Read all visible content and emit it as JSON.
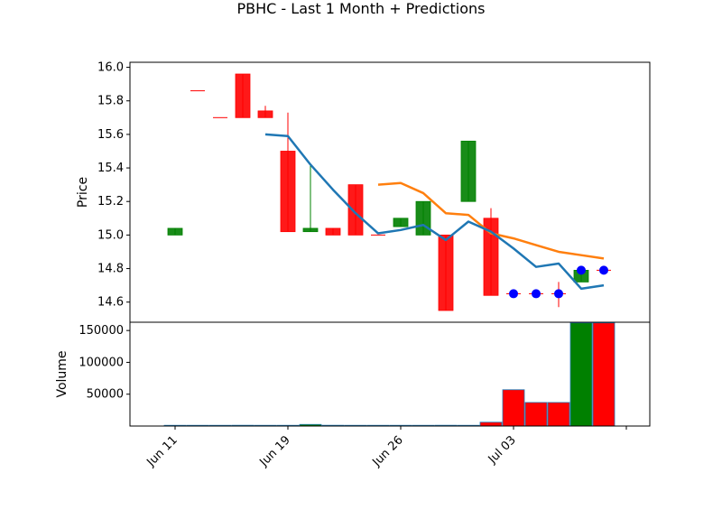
{
  "chart_data": {
    "type": "candlestick",
    "title": "PBHC - Last 1 Month + Predictions",
    "x_tick_labels": [
      "Jun 11",
      "Jun 19",
      "Jun 26",
      "Jul 03"
    ],
    "price_panel": {
      "ylabel": "Price",
      "ylim": [
        14.48,
        16.03
      ],
      "yticks": [
        "14.6",
        "14.8",
        "15.0",
        "15.2",
        "15.4",
        "15.6",
        "15.8",
        "16.0"
      ],
      "candles": [
        {
          "open": 15.0,
          "close": 15.04,
          "high": 15.04,
          "low": 15.0,
          "color": "green"
        },
        {
          "open": 15.86,
          "close": 15.86,
          "high": 15.86,
          "low": 15.86,
          "color": "red"
        },
        {
          "open": 15.7,
          "close": 15.7,
          "high": 15.7,
          "low": 15.7,
          "color": "red"
        },
        {
          "open": 15.96,
          "close": 15.7,
          "high": 15.96,
          "low": 15.7,
          "color": "red"
        },
        {
          "open": 15.74,
          "close": 15.7,
          "high": 15.77,
          "low": 15.7,
          "color": "red"
        },
        {
          "open": 15.5,
          "close": 15.02,
          "high": 15.73,
          "low": 15.02,
          "color": "red"
        },
        {
          "open": 15.02,
          "close": 15.04,
          "high": 15.42,
          "low": 15.02,
          "color": "green"
        },
        {
          "open": 15.04,
          "close": 15.0,
          "high": 15.04,
          "low": 15.0,
          "color": "red"
        },
        {
          "open": 15.3,
          "close": 15.0,
          "high": 15.3,
          "low": 15.0,
          "color": "red"
        },
        {
          "open": 15.0,
          "close": 15.0,
          "high": 15.0,
          "low": 15.0,
          "color": "red"
        },
        {
          "open": 15.05,
          "close": 15.1,
          "high": 15.1,
          "low": 15.05,
          "color": "green"
        },
        {
          "open": 15.0,
          "close": 15.2,
          "high": 15.2,
          "low": 15.0,
          "color": "green"
        },
        {
          "open": 15.0,
          "close": 14.55,
          "high": 15.0,
          "low": 14.55,
          "color": "red"
        },
        {
          "open": 15.2,
          "close": 15.56,
          "high": 15.56,
          "low": 15.2,
          "color": "green"
        },
        {
          "open": 15.1,
          "close": 14.64,
          "high": 15.16,
          "low": 14.64,
          "color": "red"
        },
        {
          "open": 14.65,
          "close": 14.65,
          "high": 14.65,
          "low": 14.65,
          "color": "red"
        },
        {
          "open": 14.65,
          "close": 14.65,
          "high": 14.65,
          "low": 14.65,
          "color": "red"
        },
        {
          "open": 14.65,
          "close": 14.65,
          "high": 14.72,
          "low": 14.57,
          "color": "red"
        },
        {
          "open": 14.72,
          "close": 14.79,
          "high": 14.8,
          "low": 14.72,
          "color": "green"
        },
        {
          "open": 14.79,
          "close": 14.79,
          "high": 14.79,
          "low": 14.79,
          "color": "red"
        }
      ],
      "series": [
        {
          "color": "#1f77b4",
          "start_index": 4,
          "values": [
            15.6,
            15.59,
            15.42,
            15.27,
            15.13,
            15.01,
            15.03,
            15.06,
            14.97,
            15.08,
            15.02,
            14.92,
            14.81,
            14.83,
            14.68,
            14.7
          ]
        },
        {
          "color": "#ff7f0e",
          "start_index": 9,
          "values": [
            15.3,
            15.31,
            15.25,
            15.13,
            15.12,
            15.01,
            14.98,
            14.94,
            14.9,
            14.88,
            14.86
          ]
        }
      ],
      "markers": [
        {
          "index": 15,
          "value": 14.65
        },
        {
          "index": 16,
          "value": 14.65
        },
        {
          "index": 17,
          "value": 14.65
        },
        {
          "index": 18,
          "value": 14.79
        },
        {
          "index": 19,
          "value": 14.79
        }
      ]
    },
    "volume_panel": {
      "ylabel": "Volume",
      "ylim": [
        0,
        163000
      ],
      "yticks": [
        "50000",
        "100000",
        "150000"
      ],
      "values": [
        0,
        0,
        0,
        1200,
        0,
        0,
        2500,
        1200,
        0,
        0,
        0,
        0,
        1200,
        0,
        6000,
        57000,
        37000,
        37000,
        162000,
        162000
      ],
      "colors": [
        "green",
        "red",
        "red",
        "red",
        "red",
        "red",
        "green",
        "red",
        "red",
        "red",
        "green",
        "green",
        "red",
        "green",
        "red",
        "red",
        "red",
        "red",
        "green",
        "red"
      ]
    }
  }
}
